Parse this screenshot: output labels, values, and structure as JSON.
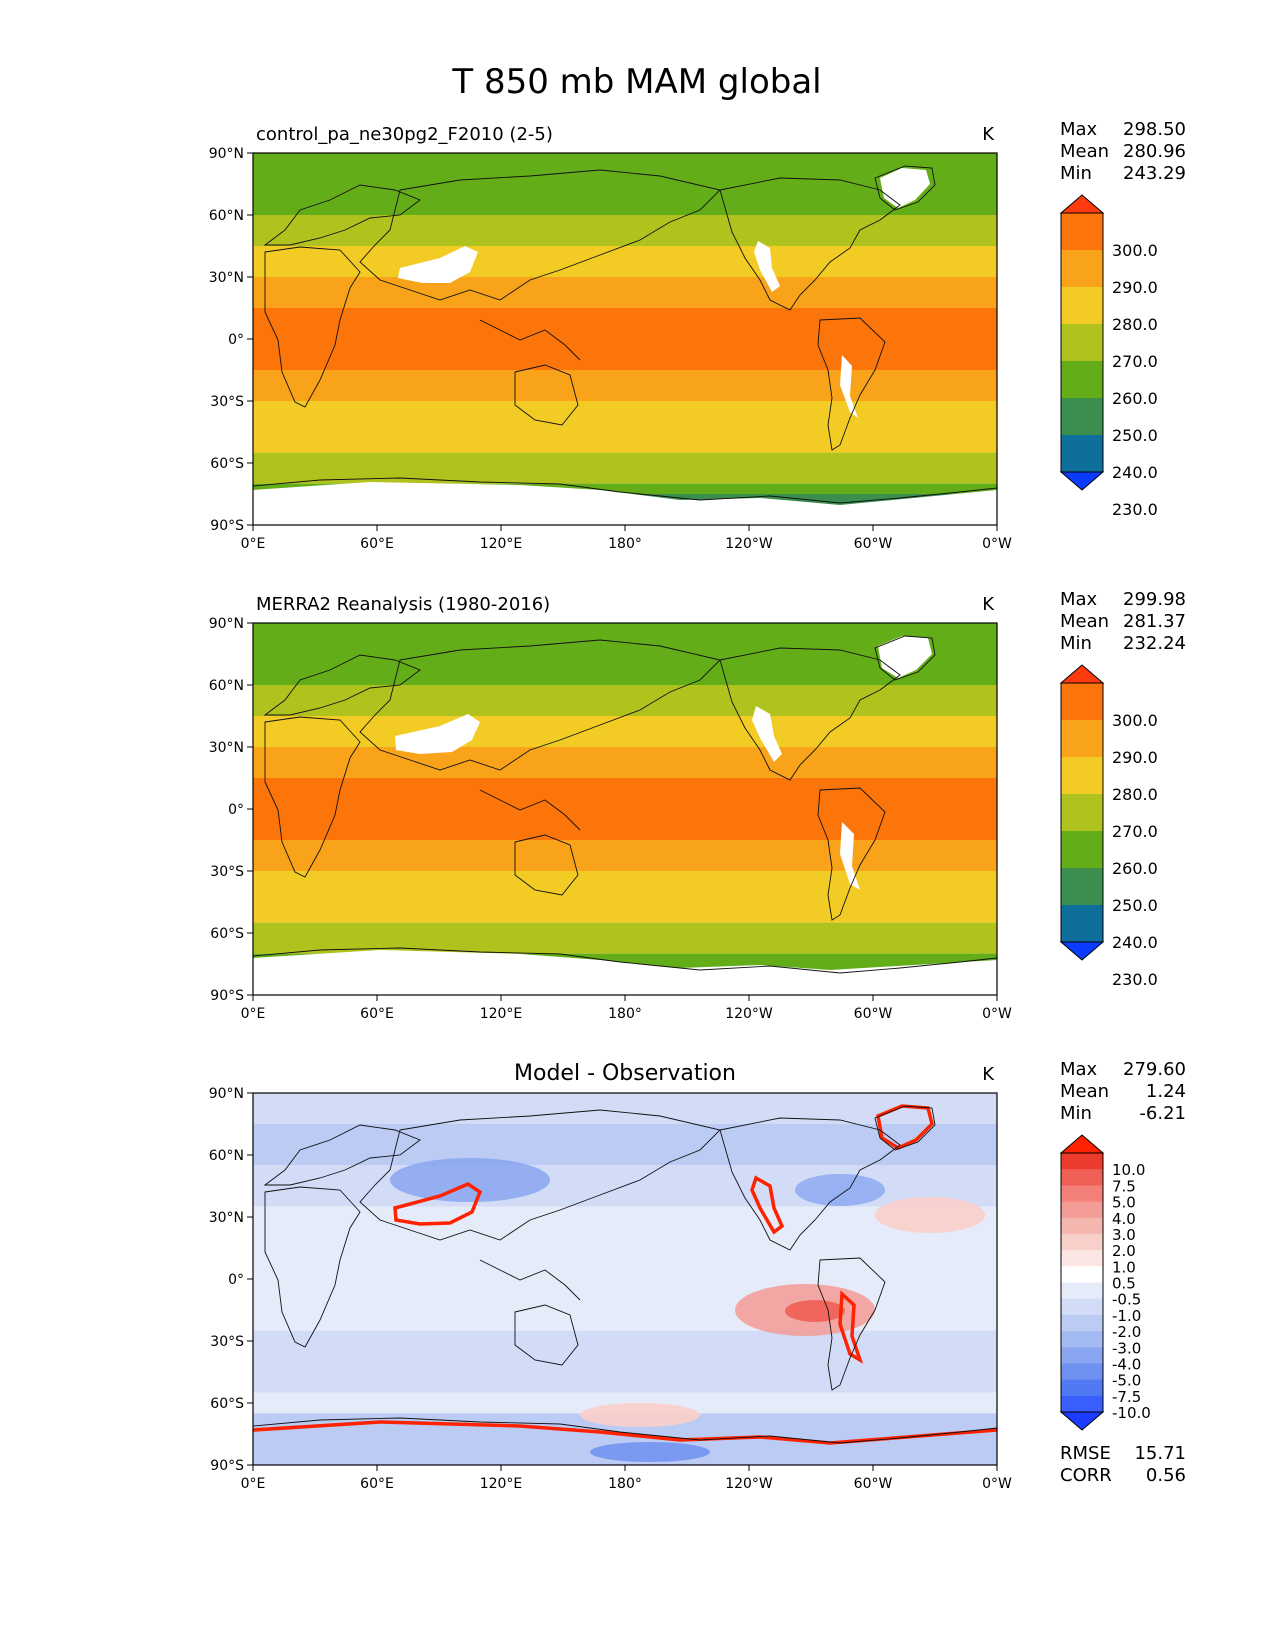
{
  "suptitle": "T 850 mb MAM global",
  "units": "K",
  "axes": {
    "lon_ticks": [
      "0°E",
      "60°E",
      "120°E",
      "180°",
      "120°W",
      "60°W",
      "0°W"
    ],
    "lat_ticks": [
      "90°N",
      "60°N",
      "30°N",
      "0°",
      "30°S",
      "60°S",
      "90°S"
    ]
  },
  "stat_labels": {
    "max": "Max",
    "mean": "Mean",
    "min": "Min",
    "rmse": "RMSE",
    "corr": "CORR"
  },
  "colors": {
    "abs_levels": [
      "#0a3cff",
      "#0e6e9c",
      "#3b8e4e",
      "#63ad19",
      "#b0c21e",
      "#f2cc24",
      "#f8a31a",
      "#fb750b",
      "#fe3b0e"
    ],
    "diff_levels": [
      "#1c3cff",
      "#3a5fff",
      "#5079f2",
      "#6e90f0",
      "#8aa6f0",
      "#a4baf2",
      "#bccbf4",
      "#d2dcf7",
      "#e6ebfa",
      "#ffffff",
      "#fbe6e4",
      "#f9cfca",
      "#f6b6b0",
      "#f39b95",
      "#f27f78",
      "#ef5f55",
      "#ec3a2c",
      "#ff2200"
    ],
    "land_missing": "#ffffff",
    "coast": "#111111"
  },
  "panels": [
    {
      "left_title": "control_pa_ne30pg2_F2010 (2-5)",
      "center_title": "",
      "right_title": "K",
      "stats": {
        "max": "298.50",
        "mean": "280.96",
        "min": "243.29"
      },
      "colorbar_labels": [
        "300.0",
        "290.0",
        "280.0",
        "270.0",
        "260.0",
        "250.0",
        "240.0",
        "230.0"
      ]
    },
    {
      "left_title": "MERRA2 Reanalysis (1980-2016)",
      "center_title": "",
      "right_title": "K",
      "stats": {
        "max": "299.98",
        "mean": "281.37",
        "min": "232.24"
      },
      "colorbar_labels": [
        "300.0",
        "290.0",
        "280.0",
        "270.0",
        "260.0",
        "250.0",
        "240.0",
        "230.0"
      ]
    },
    {
      "left_title": "",
      "center_title": "Model - Observation",
      "right_title": "K",
      "stats": {
        "max": "279.60",
        "mean": "1.24",
        "min": "-6.21",
        "rmse": "15.71",
        "corr": "0.56"
      },
      "colorbar_labels": [
        "10.0",
        "7.5",
        "5.0",
        "4.0",
        "3.0",
        "2.0",
        "1.0",
        "0.5",
        "-0.5",
        "-1.0",
        "-2.0",
        "-3.0",
        "-4.0",
        "-5.0",
        "-7.5",
        "-10.0"
      ]
    }
  ],
  "chart_data": [
    {
      "type": "heatmap",
      "title": "control_pa_ne30pg2_F2010 (2-5)",
      "variable": "T 850 mb",
      "units": "K",
      "x": [
        0,
        60,
        120,
        180,
        240,
        300,
        360
      ],
      "xlim": [
        0,
        360
      ],
      "ylim": [
        -90,
        90
      ],
      "levels": [
        230,
        240,
        250,
        260,
        270,
        280,
        290,
        300
      ],
      "zonal_mean_bands": [
        {
          "lat": [
            75,
            90
          ],
          "value": 252
        },
        {
          "lat": [
            60,
            75
          ],
          "value": 258
        },
        {
          "lat": [
            45,
            60
          ],
          "value": 265
        },
        {
          "lat": [
            30,
            45
          ],
          "value": 275
        },
        {
          "lat": [
            15,
            30
          ],
          "value": 285
        },
        {
          "lat": [
            -15,
            15
          ],
          "value": 292
        },
        {
          "lat": [
            -30,
            -15
          ],
          "value": 287
        },
        {
          "lat": [
            -45,
            -30
          ],
          "value": 278
        },
        {
          "lat": [
            -55,
            -45
          ],
          "value": 272
        },
        {
          "lat": [
            -70,
            -55
          ],
          "value": 263
        },
        {
          "lat": [
            -75,
            -70
          ],
          "value": 255
        },
        {
          "lat": [
            -90,
            -75
          ],
          "value": 248
        }
      ],
      "max": 298.5,
      "mean": 280.96,
      "min": 243.29
    },
    {
      "type": "heatmap",
      "title": "MERRA2 Reanalysis (1980-2016)",
      "variable": "T 850 mb",
      "units": "K",
      "x": [
        0,
        60,
        120,
        180,
        240,
        300,
        360
      ],
      "xlim": [
        0,
        360
      ],
      "ylim": [
        -90,
        90
      ],
      "levels": [
        230,
        240,
        250,
        260,
        270,
        280,
        290,
        300
      ],
      "zonal_mean_bands": [
        {
          "lat": [
            75,
            90
          ],
          "value": 253
        },
        {
          "lat": [
            60,
            75
          ],
          "value": 258
        },
        {
          "lat": [
            45,
            60
          ],
          "value": 265
        },
        {
          "lat": [
            30,
            45
          ],
          "value": 275
        },
        {
          "lat": [
            15,
            30
          ],
          "value": 285
        },
        {
          "lat": [
            -15,
            15
          ],
          "value": 292
        },
        {
          "lat": [
            -30,
            -15
          ],
          "value": 287
        },
        {
          "lat": [
            -45,
            -30
          ],
          "value": 278
        },
        {
          "lat": [
            -55,
            -45
          ],
          "value": 272
        },
        {
          "lat": [
            -70,
            -55
          ],
          "value": 264
        },
        {
          "lat": [
            -75,
            -70
          ],
          "value": 255
        },
        {
          "lat": [
            -90,
            -75
          ],
          "value": 252
        }
      ],
      "max": 299.98,
      "mean": 281.37,
      "min": 232.24
    },
    {
      "type": "heatmap",
      "title": "Model - Observation",
      "variable": "T 850 mb difference",
      "units": "K",
      "x": [
        0,
        60,
        120,
        180,
        240,
        300,
        360
      ],
      "xlim": [
        0,
        360
      ],
      "ylim": [
        -90,
        90
      ],
      "levels": [
        -10,
        -7.5,
        -5,
        -4,
        -3,
        -2,
        -1,
        -0.5,
        0.5,
        1,
        2,
        3,
        4,
        5,
        7.5,
        10
      ],
      "zonal_mean_bands": [
        {
          "lat": [
            75,
            90
          ],
          "value": -1
        },
        {
          "lat": [
            55,
            75
          ],
          "value": -2
        },
        {
          "lat": [
            35,
            55
          ],
          "value": -1
        },
        {
          "lat": [
            -25,
            35
          ],
          "value": 0
        },
        {
          "lat": [
            -55,
            -25
          ],
          "value": -1
        },
        {
          "lat": [
            -65,
            -55
          ],
          "value": 0
        },
        {
          "lat": [
            -90,
            -65
          ],
          "value": -2
        }
      ],
      "max": 279.6,
      "mean": 1.24,
      "min": -6.21,
      "rmse": 15.71,
      "corr": 0.56
    }
  ]
}
